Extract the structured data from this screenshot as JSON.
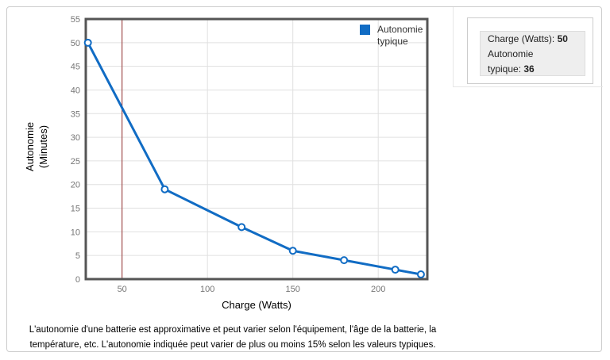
{
  "chart_data": {
    "type": "line",
    "title": "",
    "xlabel": "Charge (Watts)",
    "ylabel": "Autonomie (Minutes)",
    "x": [
      30,
      75,
      120,
      150,
      180,
      210,
      225
    ],
    "series": [
      {
        "name": "Autonomie typique",
        "color": "#116cc4",
        "values": [
          50,
          19,
          11,
          6,
          4,
          2,
          1
        ]
      }
    ],
    "x_ticks": [
      50,
      100,
      150,
      200
    ],
    "y_ticks": [
      0,
      5,
      10,
      15,
      20,
      25,
      30,
      35,
      40,
      45,
      50,
      55
    ],
    "xlim": [
      28.75,
      228.75
    ],
    "ylim": [
      0,
      55
    ],
    "grid": true,
    "grid_color": "#e0e0e0",
    "axis_color": "#555555",
    "tick_color": "#757575",
    "reference_line": {
      "x": 50,
      "color": "#963232"
    },
    "marker": {
      "fill": "#ffffff",
      "radius": 4
    },
    "legend_position": "top-right"
  },
  "legend": {
    "label": "Autonomie typique"
  },
  "tooltip": {
    "line1_label": "Charge (Watts):",
    "line1_value": "50",
    "line2_text": "Autonomie",
    "line3_label": "typique:",
    "line3_value": "36"
  },
  "footer": {
    "disclaimer": "L'autonomie d'une batterie est approximative et peut varier selon l'équipement, l'âge de la batterie, la température, etc. L'autonomie indiquée peut varier de plus ou moins 15% selon les valeurs typiques."
  }
}
